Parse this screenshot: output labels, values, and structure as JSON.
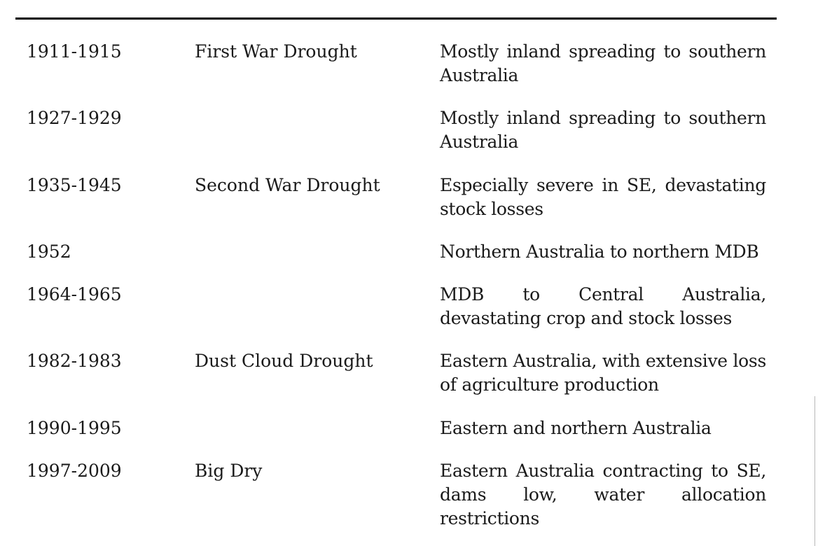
{
  "table": {
    "rows": [
      {
        "period": "1911-1915",
        "name": "First War Drought",
        "description": "Mostly inland spreading to southern Australia"
      },
      {
        "period": "1927-1929",
        "name": "",
        "description": "Mostly inland spreading to southern Australia"
      },
      {
        "period": "1935-1945",
        "name": "Second War Drought",
        "description": "Especially severe in SE, devastating stock losses"
      },
      {
        "period": "1952",
        "name": "",
        "description": "Northern Australia to northern MDB"
      },
      {
        "period": "1964-1965",
        "name": "",
        "description": "MDB to Central Australia, devastating crop and stock losses"
      },
      {
        "period": "1982-1983",
        "name": "Dust Cloud Drought",
        "description": "Eastern Australia, with extensive loss of agriculture production"
      },
      {
        "period": "1990-1995",
        "name": "",
        "description": "Eastern and northern Australia"
      },
      {
        "period": "1997-2009",
        "name": "Big Dry",
        "description": "Eastern Australia contracting to SE, dams low, water allocation restrictions"
      }
    ]
  }
}
